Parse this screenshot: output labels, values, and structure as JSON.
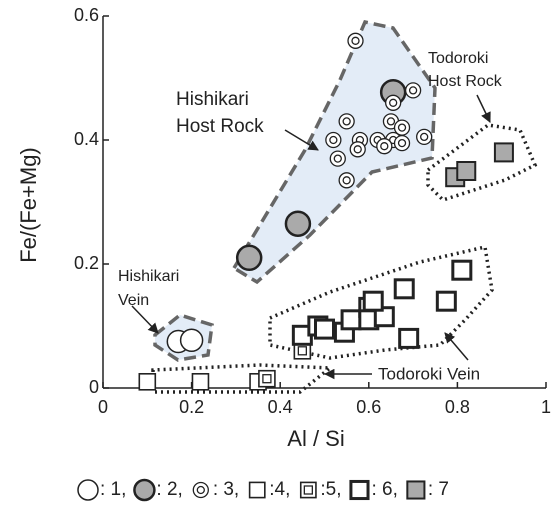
{
  "chart_data": {
    "type": "scatter",
    "xlabel": "Al / Si",
    "ylabel": "Fe/(Fe+Mg)",
    "xlim": [
      0,
      1
    ],
    "ylim": [
      0,
      0.6
    ],
    "xticks": [
      0,
      0.2,
      0.4,
      0.6,
      0.8,
      1
    ],
    "yticks": [
      0,
      0.2,
      0.4,
      0.6
    ],
    "series": [
      {
        "name": ": 1,",
        "marker": "circle",
        "color": "#ffffff",
        "x": [
          0.17,
          0.2
        ],
        "values": [
          0.075,
          0.077
        ]
      },
      {
        "name": ": 2,",
        "marker": "filled-circle",
        "color": "#aaaaaa",
        "x": [
          0.33,
          0.44,
          0.655
        ],
        "values": [
          0.21,
          0.265,
          0.477
        ]
      },
      {
        "name": ": 3,",
        "marker": "double-circle",
        "color": "#ffffff",
        "x": [
          0.57,
          0.7,
          0.655,
          0.55,
          0.65,
          0.675,
          0.52,
          0.58,
          0.62,
          0.655,
          0.725,
          0.575,
          0.675,
          0.53,
          0.55,
          0.635
        ],
        "values": [
          0.56,
          0.48,
          0.46,
          0.43,
          0.43,
          0.42,
          0.4,
          0.4,
          0.4,
          0.4,
          0.405,
          0.385,
          0.395,
          0.37,
          0.335,
          0.39
        ]
      },
      {
        "name": ":4,",
        "marker": "square",
        "color": "#ffffff",
        "x": [
          0.1,
          0.22,
          0.35
        ],
        "values": [
          0.01,
          0.01,
          0.01
        ]
      },
      {
        "name": ":5,",
        "marker": "double-square",
        "color": "#ffffff",
        "x": [
          0.37,
          0.45
        ],
        "values": [
          0.015,
          0.06
        ]
      },
      {
        "name": ": 6,",
        "marker": "thick-square",
        "color": "#ffffff",
        "x": [
          0.45,
          0.485,
          0.5,
          0.545,
          0.56,
          0.6,
          0.6,
          0.635,
          0.61,
          0.68,
          0.69,
          0.775,
          0.81
        ],
        "values": [
          0.085,
          0.1,
          0.095,
          0.09,
          0.11,
          0.13,
          0.11,
          0.115,
          0.14,
          0.16,
          0.08,
          0.14,
          0.19
        ]
      },
      {
        "name": ": 7",
        "marker": "filled-square",
        "color": "#aaaaaa",
        "x": [
          0.795,
          0.82,
          0.905
        ],
        "values": [
          0.34,
          0.35,
          0.38
        ]
      }
    ],
    "annotations": [
      {
        "lines": [
          "Hishikari",
          "Host Rock"
        ]
      },
      {
        "lines": [
          "Todoroki",
          "Host Rock"
        ]
      },
      {
        "lines": [
          "Hishikari",
          "Vein"
        ]
      },
      {
        "lines": [
          "Todoroki  Vein"
        ]
      }
    ]
  }
}
